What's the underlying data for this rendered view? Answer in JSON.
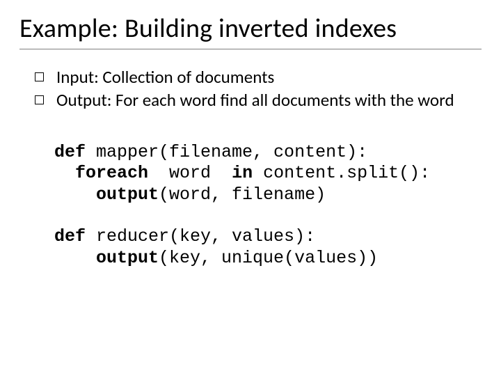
{
  "title": "Example: Building inverted indexes",
  "bullets": [
    "Input: Collection of documents",
    "Output: For each word find all documents with the word"
  ],
  "code": {
    "mapper": {
      "l1_kw": "def",
      "l1_rest": " mapper(filename, content):",
      "l2_indent": "  ",
      "l2_kw": "foreach",
      "l2_mid": "  word  ",
      "l2_kw2": "in",
      "l2_rest": " content.split():",
      "l3_indent": "    ",
      "l3_kw": "output",
      "l3_rest": "(word, filename)"
    },
    "reducer": {
      "l1_kw": "def",
      "l1_rest": " reducer(key, values):",
      "l2_indent": "    ",
      "l2_kw": "output",
      "l2_rest": "(key, unique(values))"
    }
  },
  "colors": {
    "text": "#000000",
    "background": "#ffffff",
    "rule": "#808080"
  },
  "fontsizes": {
    "title": 38,
    "body": 25,
    "code": 25
  }
}
